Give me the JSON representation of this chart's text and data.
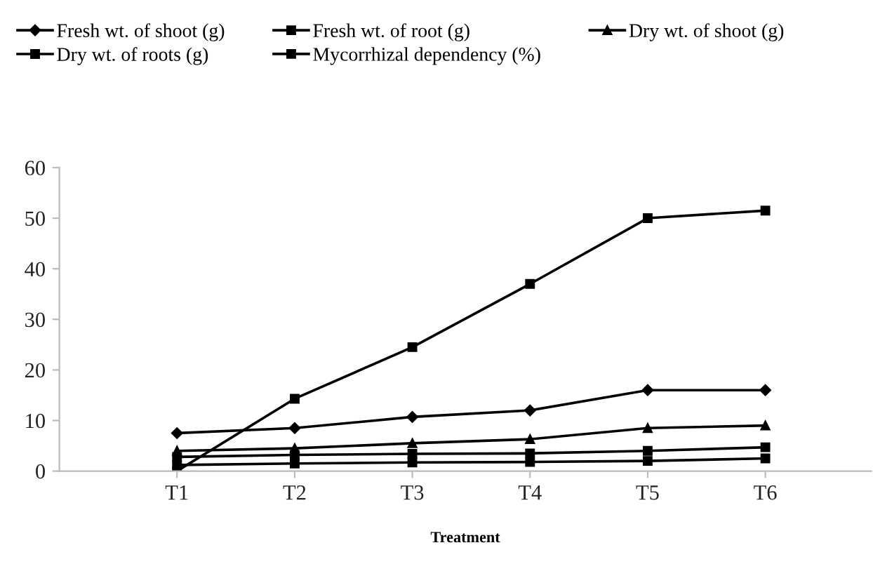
{
  "chart_data": {
    "type": "line",
    "xlabel": "Treatment",
    "categories": [
      "T1",
      "T2",
      "T3",
      "T4",
      "T5",
      "T6"
    ],
    "series": [
      {
        "name": "Fresh wt. of shoot (g)",
        "color": "#000000",
        "marker": "diamond",
        "values": [
          7.5,
          8.5,
          10.7,
          12,
          16,
          16
        ]
      },
      {
        "name": "Fresh wt. of root (g)",
        "color": "#000000",
        "marker": "square",
        "values": [
          2.8,
          3.2,
          3.4,
          3.5,
          4,
          4.7
        ]
      },
      {
        "name": "Dry wt. of shoot (g)",
        "color": "#000000",
        "marker": "triangle",
        "values": [
          4,
          4.5,
          5.5,
          6.3,
          8.5,
          9
        ]
      },
      {
        "name": "Dry wt. of roots (g)",
        "color": "#000000",
        "marker": "square",
        "values": [
          1.2,
          1.5,
          1.7,
          1.8,
          2,
          2.5
        ]
      },
      {
        "name": "Mycorrhizal dependency (%)",
        "color": "#000000",
        "marker": "square",
        "values": [
          0,
          14.3,
          24.5,
          37,
          50,
          51.5
        ]
      }
    ],
    "ylim": [
      0,
      60
    ],
    "yticks": [
      0,
      10,
      20,
      30,
      40,
      50,
      60
    ],
    "grid": false,
    "legend": "top",
    "line_style": "solid"
  }
}
